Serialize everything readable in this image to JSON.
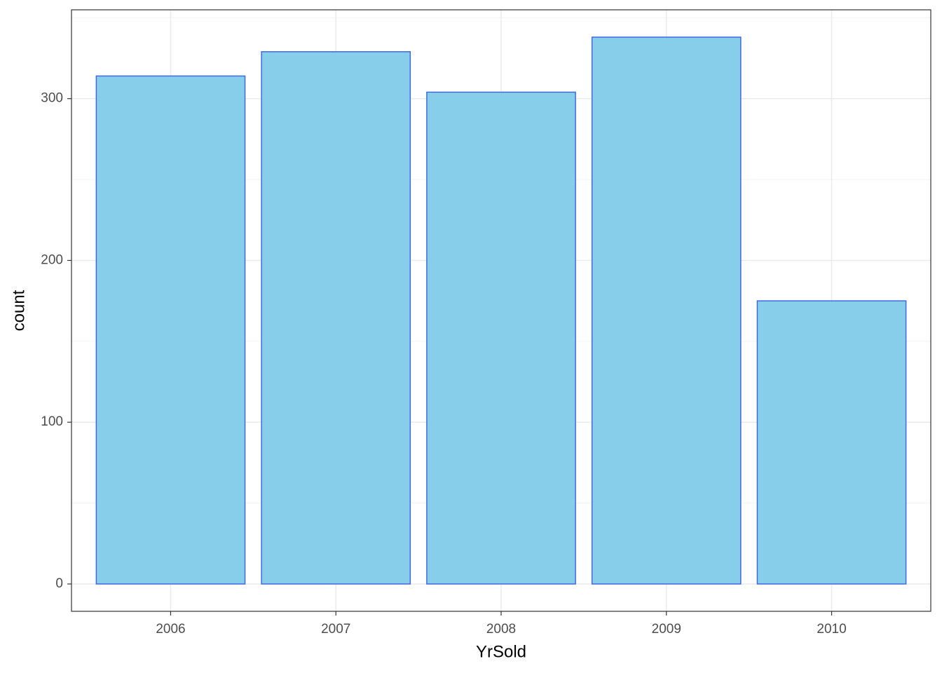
{
  "chart_data": {
    "type": "bar",
    "x_label": "YrSold",
    "y_label": "count",
    "categories": [
      "2006",
      "2007",
      "2008",
      "2009",
      "2010"
    ],
    "values": [
      314,
      329,
      304,
      338,
      175
    ],
    "color": "#87ceeb",
    "edge_color": "#4169e1",
    "ylim": [
      -16.9,
      354.9
    ],
    "yticks": [
      0,
      100,
      200,
      300
    ],
    "minor_yticks": [
      50,
      150,
      250,
      350
    ],
    "grid": true
  }
}
